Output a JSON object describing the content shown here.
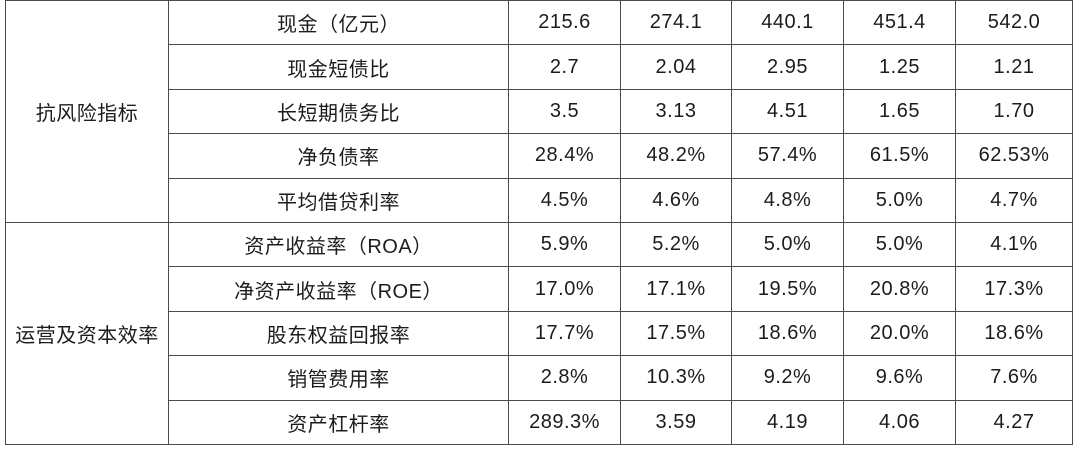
{
  "theme": {
    "highlight_green": "#3dbe6a",
    "text_color": "#1c1c1c",
    "border_color": "#4b4b4b",
    "section_divider_color": "#7e7e7e",
    "background": "#ffffff"
  },
  "table": {
    "columns_count": 7,
    "value_columns_count": 5,
    "sections": [
      {
        "category": "抗风险指标",
        "rows": [
          {
            "label": "现金（亿元）",
            "highlight": false,
            "values": [
              "215.6",
              "274.1",
              "440.1",
              "451.4",
              "542.0"
            ]
          },
          {
            "label": "现金短债比",
            "highlight": true,
            "values": [
              "2.7",
              "2.04",
              "2.95",
              "1.25",
              "1.21"
            ]
          },
          {
            "label": "长短期债务比",
            "highlight": false,
            "values": [
              "3.5",
              "3.13",
              "4.51",
              "1.65",
              "1.70"
            ]
          },
          {
            "label": "净负债率",
            "highlight": true,
            "values": [
              "28.4%",
              "48.2%",
              "57.4%",
              "61.5%",
              "62.53%"
            ]
          },
          {
            "label": "平均借贷利率",
            "highlight": false,
            "values": [
              "4.5%",
              "4.6%",
              "4.8%",
              "5.0%",
              "4.7%"
            ]
          }
        ]
      },
      {
        "category": "运营及资本效率",
        "rows": [
          {
            "label": "资产收益率（ROA）",
            "highlight": false,
            "values": [
              "5.9%",
              "5.2%",
              "5.0%",
              "5.0%",
              "4.1%"
            ]
          },
          {
            "label": "净资产收益率（ROE）",
            "highlight": false,
            "values": [
              "17.0%",
              "17.1%",
              "19.5%",
              "20.8%",
              "17.3%"
            ]
          },
          {
            "label": "股东权益回报率",
            "highlight": false,
            "values": [
              "17.7%",
              "17.5%",
              "18.6%",
              "20.0%",
              "18.6%"
            ]
          },
          {
            "label": "销管费用率",
            "highlight": false,
            "values": [
              "2.8%",
              "10.3%",
              "9.2%",
              "9.6%",
              "7.6%"
            ]
          },
          {
            "label": "资产杠杆率",
            "highlight": false,
            "values": [
              "289.3%",
              "3.59",
              "4.19",
              "4.06",
              "4.27"
            ]
          }
        ]
      }
    ]
  }
}
